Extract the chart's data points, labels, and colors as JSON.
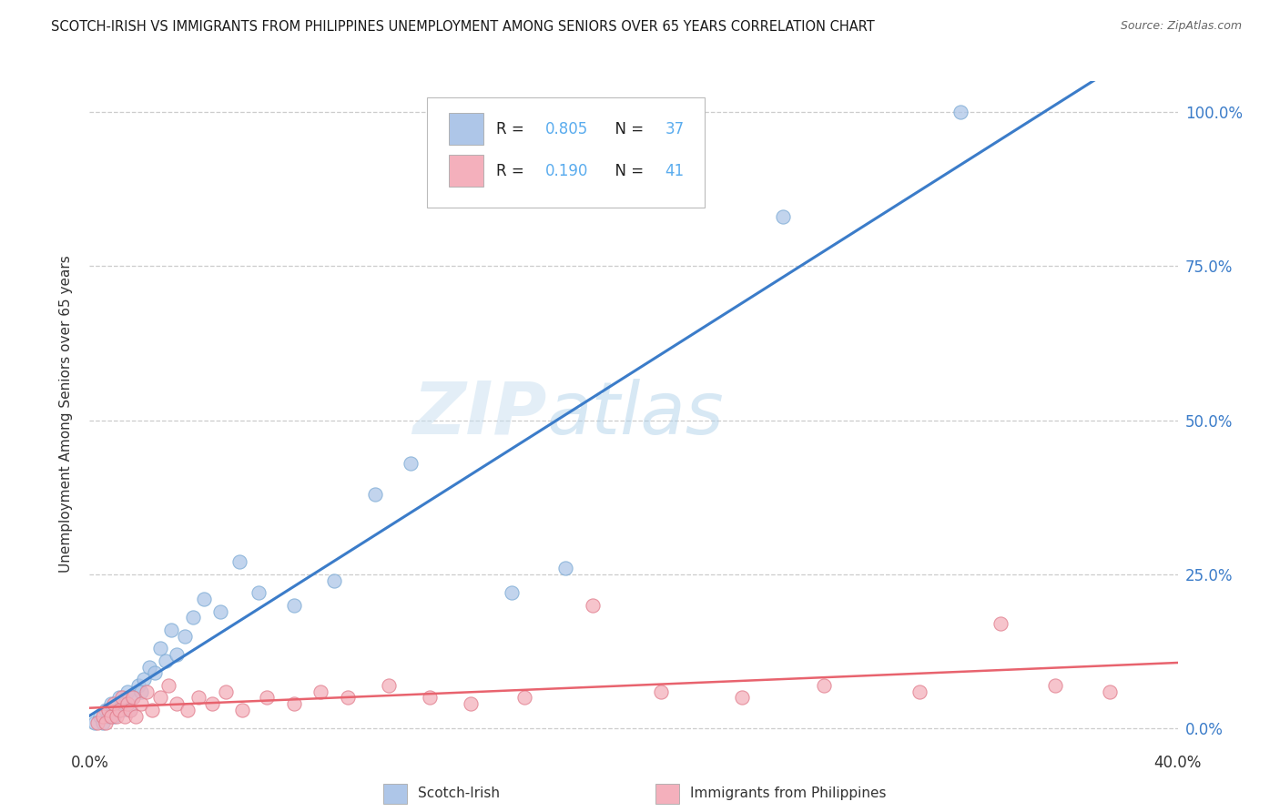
{
  "title": "SCOTCH-IRISH VS IMMIGRANTS FROM PHILIPPINES UNEMPLOYMENT AMONG SENIORS OVER 65 YEARS CORRELATION CHART",
  "source": "Source: ZipAtlas.com",
  "ylabel": "Unemployment Among Seniors over 65 years",
  "watermark_zip": "ZIP",
  "watermark_atlas": "atlas",
  "xlim": [
    0.0,
    0.4
  ],
  "ylim": [
    -0.03,
    1.05
  ],
  "scotch_irish_R": 0.805,
  "scotch_irish_N": 37,
  "philippines_R": 0.19,
  "philippines_N": 41,
  "scotch_irish_color": "#aec6e8",
  "scotch_irish_edge_color": "#7aaad4",
  "scotch_irish_line_color": "#3b7cc9",
  "philippines_color": "#f4b0bc",
  "philippines_edge_color": "#e07a8a",
  "philippines_line_color": "#e8636e",
  "legend_value_color": "#5aacee",
  "background_color": "#ffffff",
  "grid_color": "#cccccc",
  "scotch_irish_x": [
    0.002,
    0.004,
    0.005,
    0.006,
    0.007,
    0.008,
    0.009,
    0.01,
    0.011,
    0.012,
    0.013,
    0.014,
    0.015,
    0.016,
    0.018,
    0.019,
    0.02,
    0.022,
    0.024,
    0.026,
    0.028,
    0.03,
    0.032,
    0.035,
    0.038,
    0.042,
    0.048,
    0.055,
    0.062,
    0.075,
    0.09,
    0.105,
    0.118,
    0.155,
    0.175,
    0.255,
    0.32
  ],
  "scotch_irish_y": [
    0.01,
    0.02,
    0.01,
    0.03,
    0.02,
    0.04,
    0.02,
    0.03,
    0.05,
    0.03,
    0.04,
    0.06,
    0.03,
    0.05,
    0.07,
    0.06,
    0.08,
    0.1,
    0.09,
    0.13,
    0.11,
    0.16,
    0.12,
    0.15,
    0.18,
    0.21,
    0.19,
    0.27,
    0.22,
    0.2,
    0.24,
    0.38,
    0.43,
    0.22,
    0.26,
    0.83,
    1.0
  ],
  "philippines_x": [
    0.003,
    0.005,
    0.006,
    0.007,
    0.008,
    0.009,
    0.01,
    0.011,
    0.012,
    0.013,
    0.014,
    0.015,
    0.016,
    0.017,
    0.019,
    0.021,
    0.023,
    0.026,
    0.029,
    0.032,
    0.036,
    0.04,
    0.045,
    0.05,
    0.056,
    0.065,
    0.075,
    0.085,
    0.095,
    0.11,
    0.125,
    0.14,
    0.16,
    0.185,
    0.21,
    0.24,
    0.27,
    0.305,
    0.335,
    0.355,
    0.375
  ],
  "philippines_y": [
    0.01,
    0.02,
    0.01,
    0.03,
    0.02,
    0.04,
    0.02,
    0.03,
    0.05,
    0.02,
    0.04,
    0.03,
    0.05,
    0.02,
    0.04,
    0.06,
    0.03,
    0.05,
    0.07,
    0.04,
    0.03,
    0.05,
    0.04,
    0.06,
    0.03,
    0.05,
    0.04,
    0.06,
    0.05,
    0.07,
    0.05,
    0.04,
    0.05,
    0.2,
    0.06,
    0.05,
    0.07,
    0.06,
    0.17,
    0.07,
    0.06
  ]
}
